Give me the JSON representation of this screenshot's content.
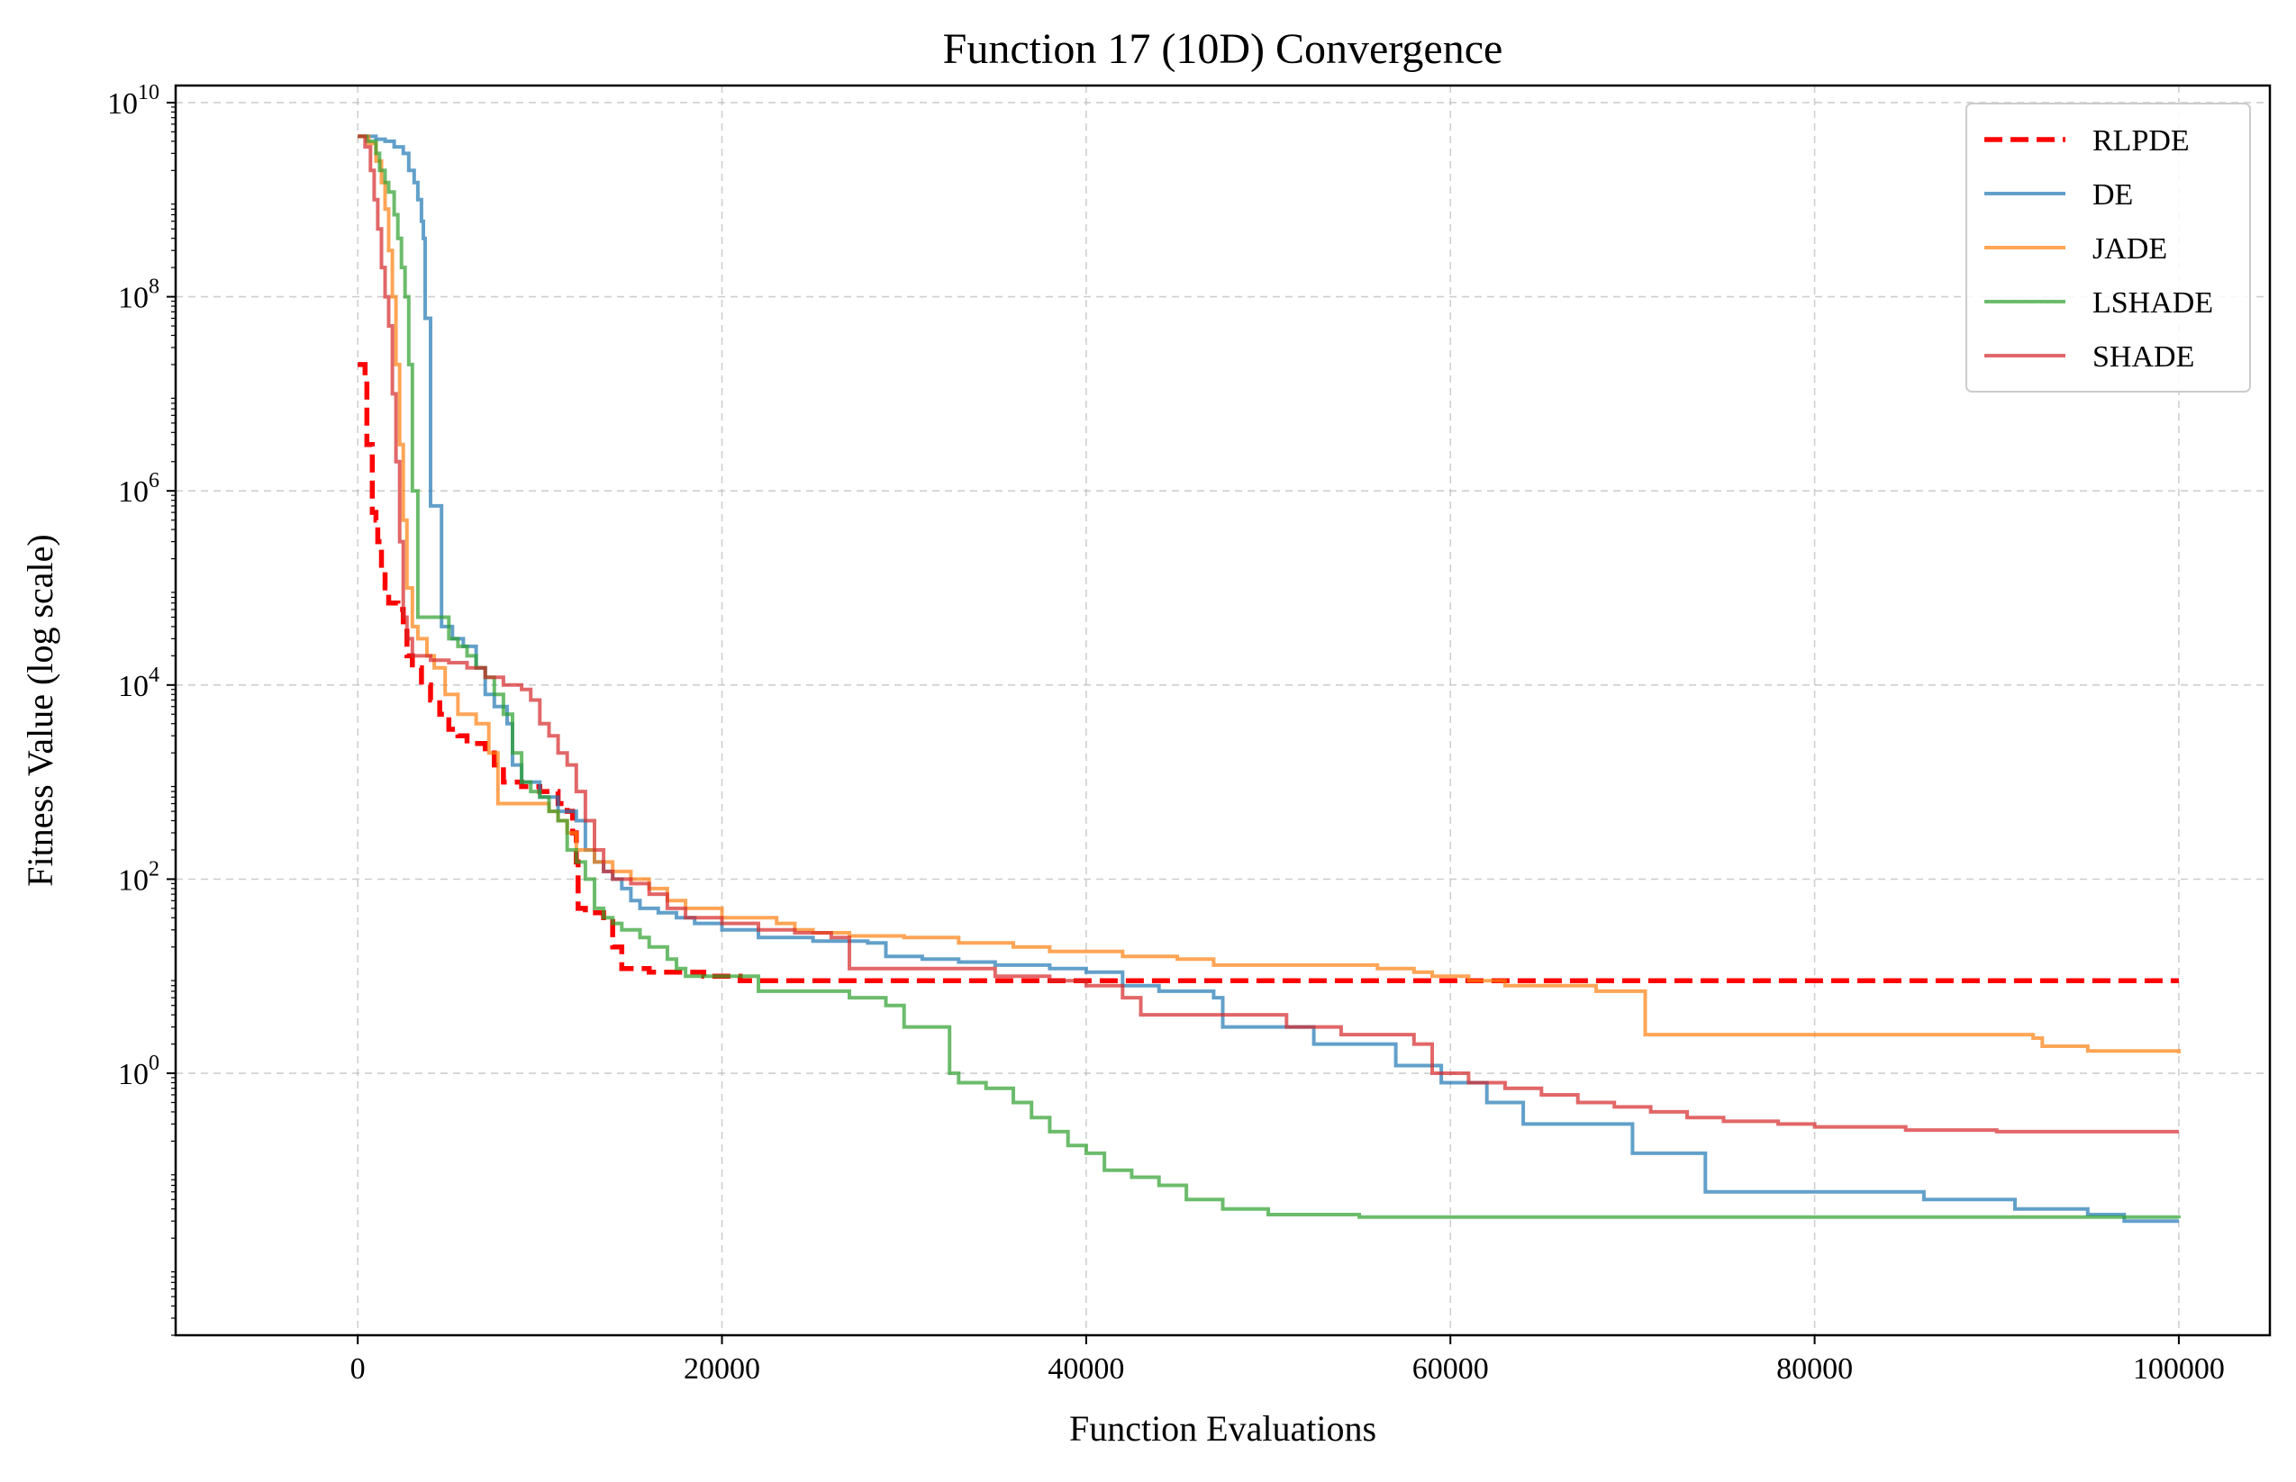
{
  "chart_data": {
    "type": "line",
    "title": "Function 17 (10D) Convergence",
    "xlabel": "Function Evaluations",
    "ylabel": "Fitness Value (log scale)",
    "xlim": [
      -10000,
      105000
    ],
    "ylim": [
      0.002,
      15000000000
    ],
    "yscale": "log",
    "grid": true,
    "legend_position": "top-right",
    "x_ticks": [
      0,
      20000,
      40000,
      60000,
      80000,
      100000
    ],
    "x_tick_labels": [
      "0",
      "20000",
      "40000",
      "60000",
      "80000",
      "100000"
    ],
    "y_ticks": [
      1,
      100,
      10000,
      1000000,
      100000000,
      10000000000
    ],
    "y_tick_labels": [
      {
        "base": "10",
        "exp": "0"
      },
      {
        "base": "10",
        "exp": "2"
      },
      {
        "base": "10",
        "exp": "4"
      },
      {
        "base": "10",
        "exp": "6"
      },
      {
        "base": "10",
        "exp": "8"
      },
      {
        "base": "10",
        "exp": "10"
      }
    ],
    "series": [
      {
        "name": "RLPDE",
        "color": "#ff0000",
        "style": "dashed",
        "opacity": 1,
        "points": [
          [
            0,
            20000000
          ],
          [
            300,
            20000000
          ],
          [
            400,
            15000000
          ],
          [
            500,
            3000000
          ],
          [
            700,
            3000000
          ],
          [
            800,
            600000
          ],
          [
            1000,
            500000
          ],
          [
            1100,
            300000
          ],
          [
            1300,
            150000
          ],
          [
            1500,
            100000
          ],
          [
            1700,
            70000
          ],
          [
            2200,
            60000
          ],
          [
            2500,
            40000
          ],
          [
            2700,
            20000
          ],
          [
            3000,
            15000
          ],
          [
            3500,
            10000
          ],
          [
            4000,
            7000
          ],
          [
            4500,
            5000
          ],
          [
            5000,
            3500
          ],
          [
            5500,
            3000
          ],
          [
            6000,
            2500
          ],
          [
            7000,
            2000
          ],
          [
            7500,
            1500
          ],
          [
            8000,
            1000
          ],
          [
            9000,
            900
          ],
          [
            10000,
            800
          ],
          [
            11000,
            600
          ],
          [
            11500,
            500
          ],
          [
            11800,
            300
          ],
          [
            12000,
            150
          ],
          [
            12100,
            50
          ],
          [
            12500,
            45
          ],
          [
            13500,
            40
          ],
          [
            14000,
            20
          ],
          [
            14500,
            12
          ],
          [
            16000,
            11
          ],
          [
            19000,
            10
          ],
          [
            20000,
            10
          ],
          [
            21000,
            9
          ],
          [
            100000,
            9
          ]
        ]
      },
      {
        "name": "DE",
        "color": "#1f77b4",
        "style": "solid",
        "opacity": 0.7,
        "points": [
          [
            0,
            4500000000
          ],
          [
            1000,
            4200000000
          ],
          [
            1500,
            4000000000
          ],
          [
            2000,
            3500000000
          ],
          [
            2500,
            3000000000
          ],
          [
            2800,
            2000000000
          ],
          [
            3100,
            1500000000
          ],
          [
            3300,
            1000000000
          ],
          [
            3500,
            600000000
          ],
          [
            3600,
            400000000
          ],
          [
            3700,
            60000000
          ],
          [
            3900,
            60000000
          ],
          [
            4000,
            700000
          ],
          [
            4500,
            700000
          ],
          [
            4600,
            40000
          ],
          [
            5000,
            40000
          ],
          [
            5200,
            30000
          ],
          [
            5800,
            25000
          ],
          [
            6500,
            15000
          ],
          [
            7000,
            8000
          ],
          [
            7500,
            6000
          ],
          [
            8200,
            4000
          ],
          [
            8500,
            1500
          ],
          [
            9000,
            1000
          ],
          [
            10000,
            700
          ],
          [
            11000,
            500
          ],
          [
            12000,
            400
          ],
          [
            12500,
            200
          ],
          [
            13000,
            150
          ],
          [
            13500,
            120
          ],
          [
            14000,
            100
          ],
          [
            14500,
            80
          ],
          [
            15000,
            60
          ],
          [
            15500,
            50
          ],
          [
            16500,
            45
          ],
          [
            17500,
            40
          ],
          [
            18500,
            35
          ],
          [
            20000,
            30
          ],
          [
            22000,
            25
          ],
          [
            25000,
            23
          ],
          [
            28000,
            22
          ],
          [
            29000,
            16
          ],
          [
            31000,
            15
          ],
          [
            33000,
            14
          ],
          [
            35000,
            13
          ],
          [
            38000,
            12
          ],
          [
            40000,
            11
          ],
          [
            42000,
            8
          ],
          [
            44000,
            7
          ],
          [
            47000,
            6
          ],
          [
            47500,
            3
          ],
          [
            52500,
            2
          ],
          [
            56000,
            2
          ],
          [
            57000,
            1.2
          ],
          [
            58500,
            1.2
          ],
          [
            59500,
            0.8
          ],
          [
            62000,
            0.5
          ],
          [
            64000,
            0.3
          ],
          [
            68000,
            0.3
          ],
          [
            70000,
            0.15
          ],
          [
            73000,
            0.15
          ],
          [
            74000,
            0.06
          ],
          [
            84000,
            0.06
          ],
          [
            86000,
            0.05
          ],
          [
            91000,
            0.04
          ],
          [
            95000,
            0.035
          ],
          [
            97000,
            0.03
          ],
          [
            100000,
            0.03
          ]
        ]
      },
      {
        "name": "JADE",
        "color": "#ff7f0e",
        "style": "solid",
        "opacity": 0.7,
        "points": [
          [
            0,
            4500000000
          ],
          [
            600,
            3800000000
          ],
          [
            1000,
            2500000000
          ],
          [
            1300,
            1500000000
          ],
          [
            1500,
            800000000
          ],
          [
            1700,
            300000000
          ],
          [
            1900,
            100000000
          ],
          [
            2100,
            20000000
          ],
          [
            2300,
            3000000
          ],
          [
            2500,
            500000
          ],
          [
            2700,
            100000
          ],
          [
            3000,
            40000
          ],
          [
            3300,
            30000
          ],
          [
            3800,
            20000
          ],
          [
            4200,
            15000
          ],
          [
            4800,
            8000
          ],
          [
            5500,
            5000
          ],
          [
            6500,
            4000
          ],
          [
            7200,
            2000
          ],
          [
            7700,
            600
          ],
          [
            8500,
            600
          ],
          [
            10000,
            600
          ],
          [
            10500,
            500
          ],
          [
            11000,
            400
          ],
          [
            11500,
            300
          ],
          [
            12000,
            200
          ],
          [
            13000,
            150
          ],
          [
            14000,
            120
          ],
          [
            15000,
            100
          ],
          [
            16000,
            80
          ],
          [
            17000,
            60
          ],
          [
            18000,
            50
          ],
          [
            20000,
            40
          ],
          [
            23000,
            35
          ],
          [
            24000,
            30
          ],
          [
            25000,
            28
          ],
          [
            27000,
            26
          ],
          [
            30000,
            25
          ],
          [
            33000,
            22
          ],
          [
            36000,
            20
          ],
          [
            38000,
            18
          ],
          [
            42000,
            16
          ],
          [
            45000,
            15
          ],
          [
            47000,
            13
          ],
          [
            52000,
            13
          ],
          [
            56000,
            12
          ],
          [
            58000,
            11
          ],
          [
            59000,
            10
          ],
          [
            61000,
            9
          ],
          [
            63000,
            8
          ],
          [
            66000,
            8
          ],
          [
            68000,
            7
          ],
          [
            70600,
            7
          ],
          [
            70700,
            2.5
          ],
          [
            82000,
            2.5
          ],
          [
            92000,
            2.3
          ],
          [
            92500,
            1.9
          ],
          [
            95000,
            1.7
          ],
          [
            100000,
            1.6
          ]
        ]
      },
      {
        "name": "LSHADE",
        "color": "#2ca02c",
        "style": "solid",
        "opacity": 0.7,
        "points": [
          [
            0,
            4500000000
          ],
          [
            500,
            4000000000
          ],
          [
            1000,
            3000000000
          ],
          [
            1200,
            2000000000
          ],
          [
            1500,
            1500000000
          ],
          [
            1700,
            1200000000
          ],
          [
            2000,
            700000000
          ],
          [
            2200,
            400000000
          ],
          [
            2400,
            200000000
          ],
          [
            2600,
            100000000
          ],
          [
            2800,
            20000000
          ],
          [
            3000,
            1000000
          ],
          [
            3200,
            1000000
          ],
          [
            3300,
            50000
          ],
          [
            4000,
            50000
          ],
          [
            4500,
            50000
          ],
          [
            5000,
            30000
          ],
          [
            5500,
            25000
          ],
          [
            6000,
            20000
          ],
          [
            6500,
            15000
          ],
          [
            7000,
            12000
          ],
          [
            7500,
            8000
          ],
          [
            8000,
            5000
          ],
          [
            8500,
            2000
          ],
          [
            9000,
            1000
          ],
          [
            9500,
            800
          ],
          [
            10000,
            700
          ],
          [
            10500,
            500
          ],
          [
            11000,
            400
          ],
          [
            11500,
            200
          ],
          [
            12000,
            150
          ],
          [
            12500,
            100
          ],
          [
            13000,
            50
          ],
          [
            13500,
            40
          ],
          [
            14000,
            35
          ],
          [
            14500,
            30
          ],
          [
            15500,
            25
          ],
          [
            16000,
            20
          ],
          [
            17000,
            15
          ],
          [
            17500,
            12
          ],
          [
            18000,
            10
          ],
          [
            20000,
            10
          ],
          [
            21000,
            10
          ],
          [
            22000,
            7
          ],
          [
            25000,
            7
          ],
          [
            27000,
            6
          ],
          [
            29000,
            5
          ],
          [
            30000,
            3
          ],
          [
            32000,
            3
          ],
          [
            32500,
            1
          ],
          [
            33000,
            0.8
          ],
          [
            34500,
            0.7
          ],
          [
            36000,
            0.5
          ],
          [
            37000,
            0.35
          ],
          [
            38000,
            0.25
          ],
          [
            39000,
            0.18
          ],
          [
            40000,
            0.15
          ],
          [
            41000,
            0.1
          ],
          [
            42500,
            0.085
          ],
          [
            44000,
            0.07
          ],
          [
            45500,
            0.05
          ],
          [
            47500,
            0.04
          ],
          [
            50000,
            0.035
          ],
          [
            55000,
            0.033
          ],
          [
            100000,
            0.032
          ]
        ]
      },
      {
        "name": "SHADE",
        "color": "#d62728",
        "style": "solid",
        "opacity": 0.7,
        "points": [
          [
            0,
            4500000000
          ],
          [
            400,
            3500000000
          ],
          [
            700,
            2000000000
          ],
          [
            900,
            1000000000
          ],
          [
            1100,
            500000000
          ],
          [
            1300,
            200000000
          ],
          [
            1500,
            100000000
          ],
          [
            1700,
            50000000
          ],
          [
            1900,
            10000000
          ],
          [
            2100,
            2000000
          ],
          [
            2300,
            300000
          ],
          [
            2500,
            50000
          ],
          [
            2700,
            30000
          ],
          [
            3000,
            20000
          ],
          [
            4000,
            18000
          ],
          [
            5000,
            17000
          ],
          [
            6000,
            15000
          ],
          [
            7000,
            12000
          ],
          [
            8000,
            10000
          ],
          [
            9000,
            9000
          ],
          [
            9500,
            7000
          ],
          [
            10000,
            4000
          ],
          [
            10500,
            3000
          ],
          [
            11000,
            2000
          ],
          [
            11500,
            1500
          ],
          [
            12000,
            800
          ],
          [
            12500,
            400
          ],
          [
            13000,
            200
          ],
          [
            13500,
            120
          ],
          [
            14000,
            100
          ],
          [
            15000,
            90
          ],
          [
            16000,
            70
          ],
          [
            17000,
            50
          ],
          [
            18000,
            40
          ],
          [
            20000,
            35
          ],
          [
            22000,
            30
          ],
          [
            24000,
            28
          ],
          [
            26000,
            25
          ],
          [
            27000,
            12
          ],
          [
            30000,
            12
          ],
          [
            35000,
            10
          ],
          [
            38000,
            9
          ],
          [
            40000,
            8
          ],
          [
            42000,
            6
          ],
          [
            43000,
            4
          ],
          [
            47000,
            4
          ],
          [
            51000,
            3
          ],
          [
            54000,
            2.5
          ],
          [
            58000,
            2
          ],
          [
            59000,
            1
          ],
          [
            61000,
            0.8
          ],
          [
            63000,
            0.7
          ],
          [
            65000,
            0.6
          ],
          [
            67000,
            0.5
          ],
          [
            69000,
            0.45
          ],
          [
            71000,
            0.4
          ],
          [
            73000,
            0.35
          ],
          [
            75000,
            0.32
          ],
          [
            78000,
            0.3
          ],
          [
            80000,
            0.28
          ],
          [
            85000,
            0.26
          ],
          [
            90000,
            0.25
          ],
          [
            100000,
            0.25
          ]
        ]
      }
    ]
  }
}
